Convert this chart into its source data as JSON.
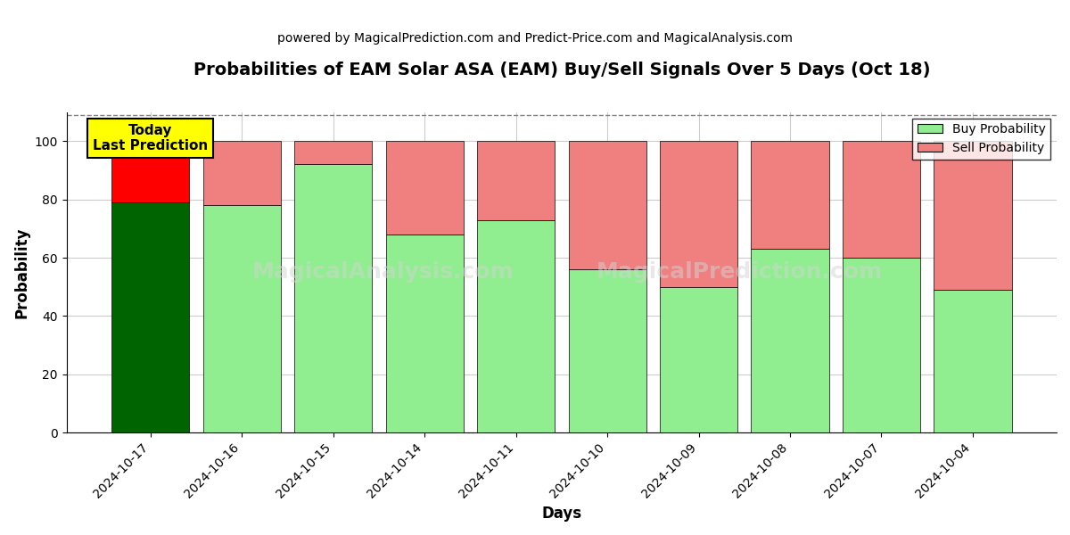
{
  "title": "Probabilities of EAM Solar ASA (EAM) Buy/Sell Signals Over 5 Days (Oct 18)",
  "subtitle": "powered by MagicalPrediction.com and Predict-Price.com and MagicalAnalysis.com",
  "xlabel": "Days",
  "ylabel": "Probability",
  "dates": [
    "2024-10-17",
    "2024-10-16",
    "2024-10-15",
    "2024-10-14",
    "2024-10-11",
    "2024-10-10",
    "2024-10-09",
    "2024-10-08",
    "2024-10-07",
    "2024-10-04"
  ],
  "buy_values": [
    79,
    78,
    92,
    68,
    73,
    56,
    50,
    63,
    60,
    49
  ],
  "sell_values": [
    21,
    22,
    8,
    32,
    27,
    44,
    50,
    37,
    40,
    51
  ],
  "today_buy_color": "#006400",
  "today_sell_color": "#ff0000",
  "buy_color": "#90EE90",
  "sell_color": "#F08080",
  "today_annotation_bg": "#ffff00",
  "today_annotation_text": "Today\nLast Prediction",
  "ylim": [
    0,
    110
  ],
  "dashed_line_y": 109,
  "watermark_texts": [
    "MagicalAnalysis.com",
    "MagicalPrediction.com"
  ],
  "legend_buy_label": "Buy Probability",
  "legend_sell_label": "Sell Probability",
  "background_color": "#ffffff",
  "grid_color": "#cccccc",
  "title_fontsize": 14,
  "subtitle_fontsize": 10,
  "label_fontsize": 12,
  "tick_fontsize": 10
}
